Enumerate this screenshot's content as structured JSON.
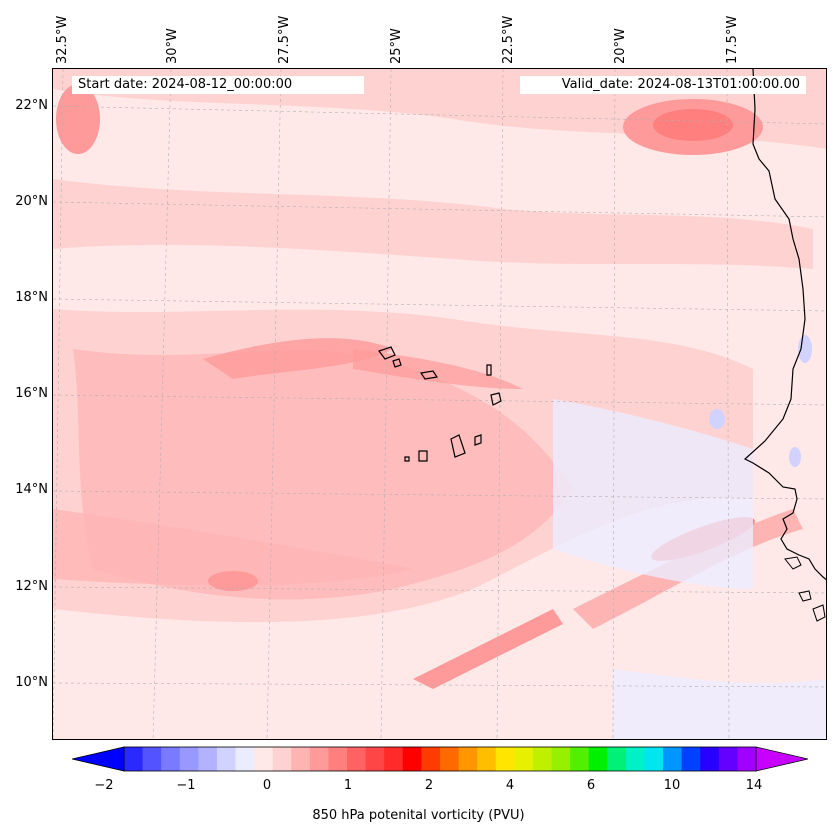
{
  "map": {
    "start_date": "Start date: 2024-08-12_00:00:00",
    "valid_date": "Valid_date: 2024-08-13T01:00:00.00",
    "lon_labels": [
      "32.5°W",
      "30°W",
      "27.5°W",
      "25°W",
      "22.5°W",
      "20°W",
      "17.5°W"
    ],
    "lat_labels": [
      "22°N",
      "20°N",
      "18°N",
      "16°N",
      "14°N",
      "12°N",
      "10°N"
    ]
  },
  "colorbar": {
    "ticks": [
      "−2",
      "−1",
      "0",
      "1",
      "2",
      "4",
      "6",
      "10",
      "14"
    ],
    "title": "850 hPa potenital vorticity (PVU)",
    "colors": [
      "#0000ff",
      "#2a2aff",
      "#5454ff",
      "#7a7aff",
      "#9898ff",
      "#b2b2ff",
      "#d2d2ff",
      "#ececff",
      "#ffe8e8",
      "#ffd2d2",
      "#ffb4b4",
      "#ff9a9a",
      "#ff7e7e",
      "#ff6262",
      "#ff4646",
      "#ff2a2a",
      "#ff0000",
      "#ff3c00",
      "#ff6a00",
      "#ff9600",
      "#ffbe00",
      "#ffe600",
      "#e6f000",
      "#bef000",
      "#96f000",
      "#50f000",
      "#00f000",
      "#00f078",
      "#00f0c8",
      "#00e6f0",
      "#0096ff",
      "#0040ff",
      "#2800ff",
      "#6400ff",
      "#a000ff",
      "#c800ff"
    ]
  }
}
